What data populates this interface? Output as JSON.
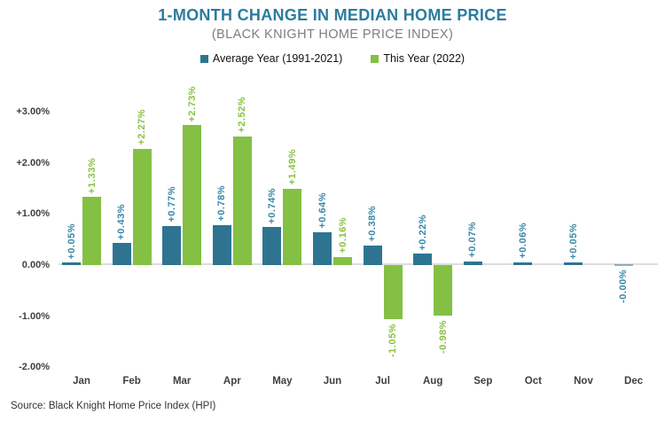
{
  "header": {
    "title": "1-MONTH CHANGE IN MEDIAN HOME PRICE",
    "subtitle": "(BLACK KNIGHT HOME PRICE INDEX)"
  },
  "footer": {
    "source": "Source: Black Knight Home Price Index (HPI)"
  },
  "colors": {
    "title": "#2B7C9E",
    "axis_line": "#DDDDDD",
    "tick_text": "#3F3F3F",
    "average_bar": "#2E7491",
    "average_label": "#3787A8",
    "this_year_bar": "#84C043",
    "this_year_label": "#87C23F"
  },
  "chart_data": {
    "type": "bar",
    "title": "1-MONTH CHANGE IN MEDIAN HOME PRICE",
    "subtitle": "(BLACK KNIGHT HOME PRICE INDEX)",
    "categories": [
      "Jan",
      "Feb",
      "Mar",
      "Apr",
      "May",
      "Jun",
      "Jul",
      "Aug",
      "Sep",
      "Oct",
      "Nov",
      "Dec"
    ],
    "series": [
      {
        "name": "Average Year (1991-2021)",
        "color": "#2E7491",
        "label_color": "#3787A8",
        "values": [
          0.05,
          0.43,
          0.77,
          0.78,
          0.74,
          0.64,
          0.38,
          0.22,
          0.07,
          0.06,
          0.05,
          -0.0
        ],
        "labels": [
          "+0.05%",
          "+0.43%",
          "+0.77%",
          "+0.78%",
          "+0.74%",
          "+0.64%",
          "+0.38%",
          "+0.22%",
          "+0.07%",
          "+0.06%",
          "+0.05%",
          "-0.00%"
        ]
      },
      {
        "name": "This Year (2022)",
        "color": "#84C043",
        "label_color": "#87C23F",
        "values": [
          1.33,
          2.27,
          2.73,
          2.52,
          1.49,
          0.16,
          -1.05,
          -0.98,
          null,
          null,
          null,
          null
        ],
        "labels": [
          "+1.33%",
          "+2.27%",
          "+2.73%",
          "+2.52%",
          "+1.49%",
          "+0.16%",
          "-1.05%",
          "-0.98%",
          null,
          null,
          null,
          null
        ]
      }
    ],
    "y_ticks": [
      "+3.00%",
      "+2.00%",
      "+1.00%",
      "0.00%",
      "-1.00%",
      "-2.00%"
    ],
    "y_tick_values": [
      3,
      2,
      1,
      0,
      -1,
      -2
    ],
    "ylim": [
      -2.0,
      3.3
    ],
    "unit": "percent",
    "grid": false,
    "legend_position": "top"
  }
}
